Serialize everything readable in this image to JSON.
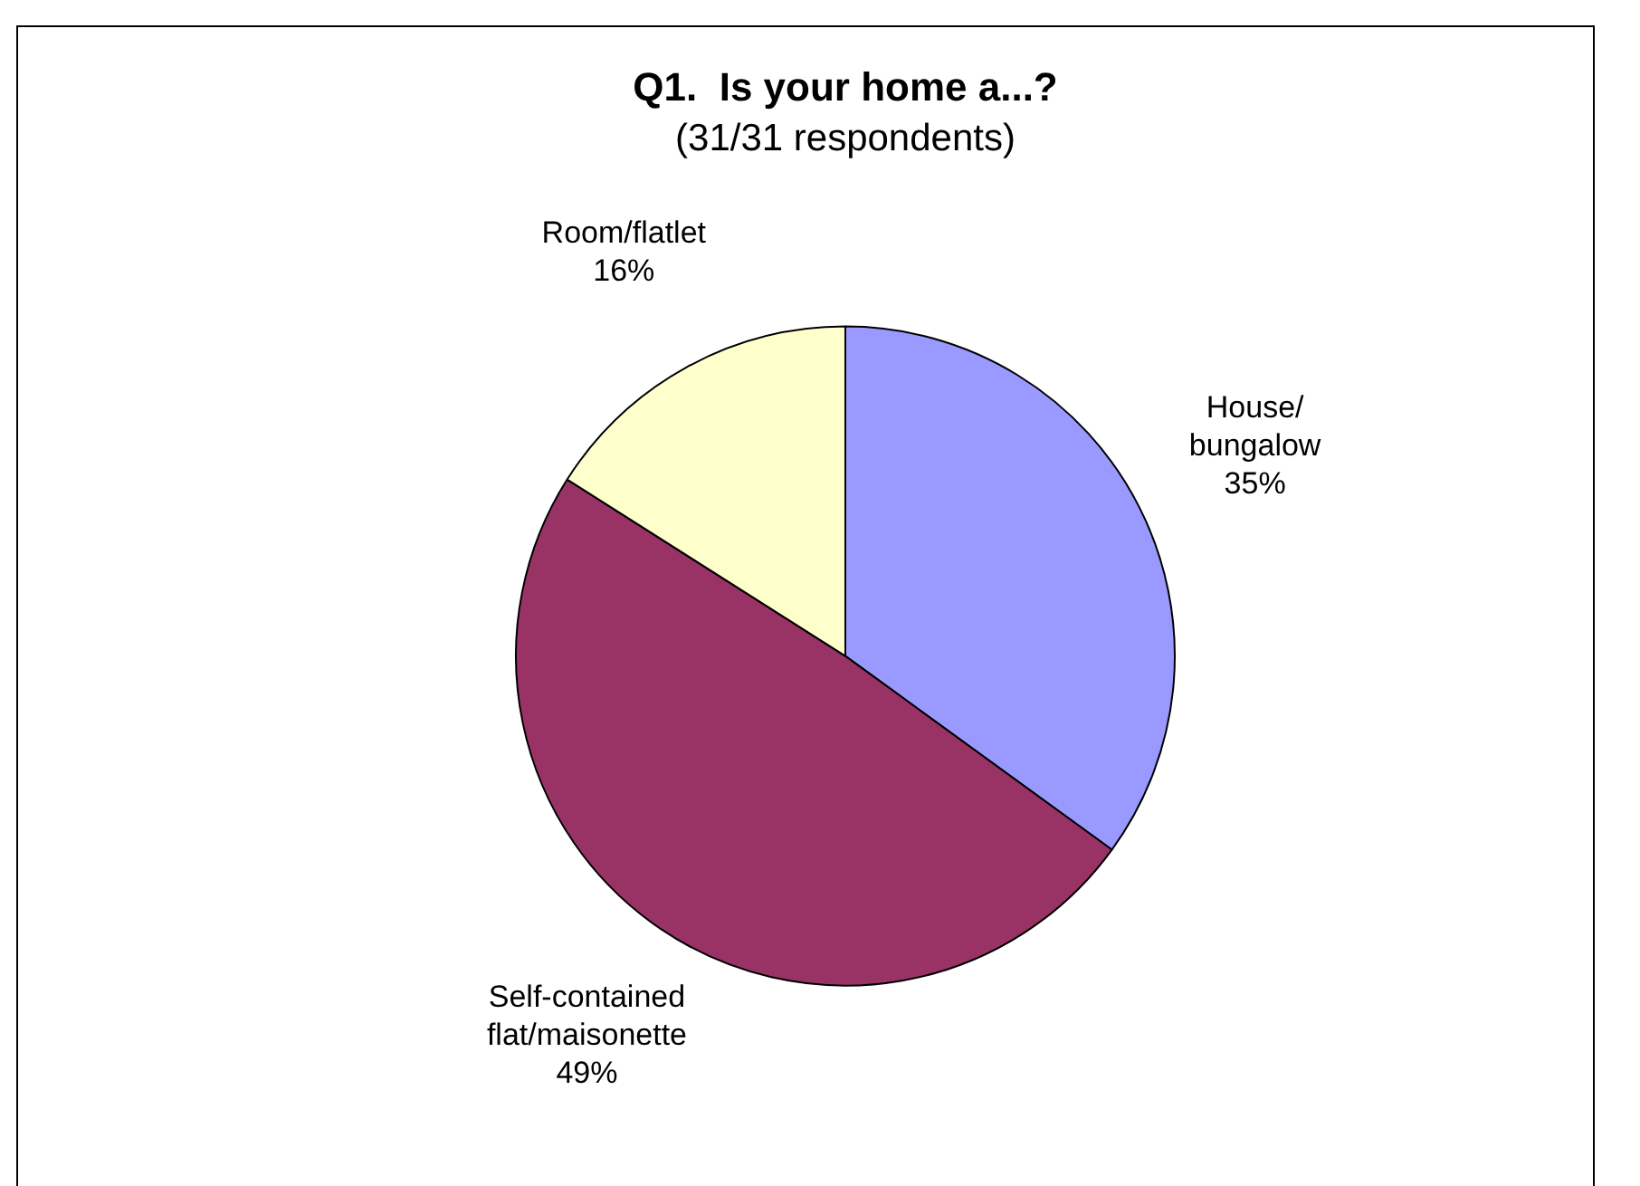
{
  "chart_data": {
    "type": "pie",
    "title": "Q1.  Is your home a...?",
    "subtitle": "(31/31 respondents)",
    "categories": [
      "House/bungalow",
      "Self-contained flat/maisonette",
      "Room/flatlet"
    ],
    "values": [
      35,
      49,
      16
    ],
    "colors": [
      "#9999ff",
      "#993366",
      "#ffffcc"
    ],
    "value_labels": [
      "35%",
      "49%",
      "16%"
    ],
    "legend": false
  }
}
